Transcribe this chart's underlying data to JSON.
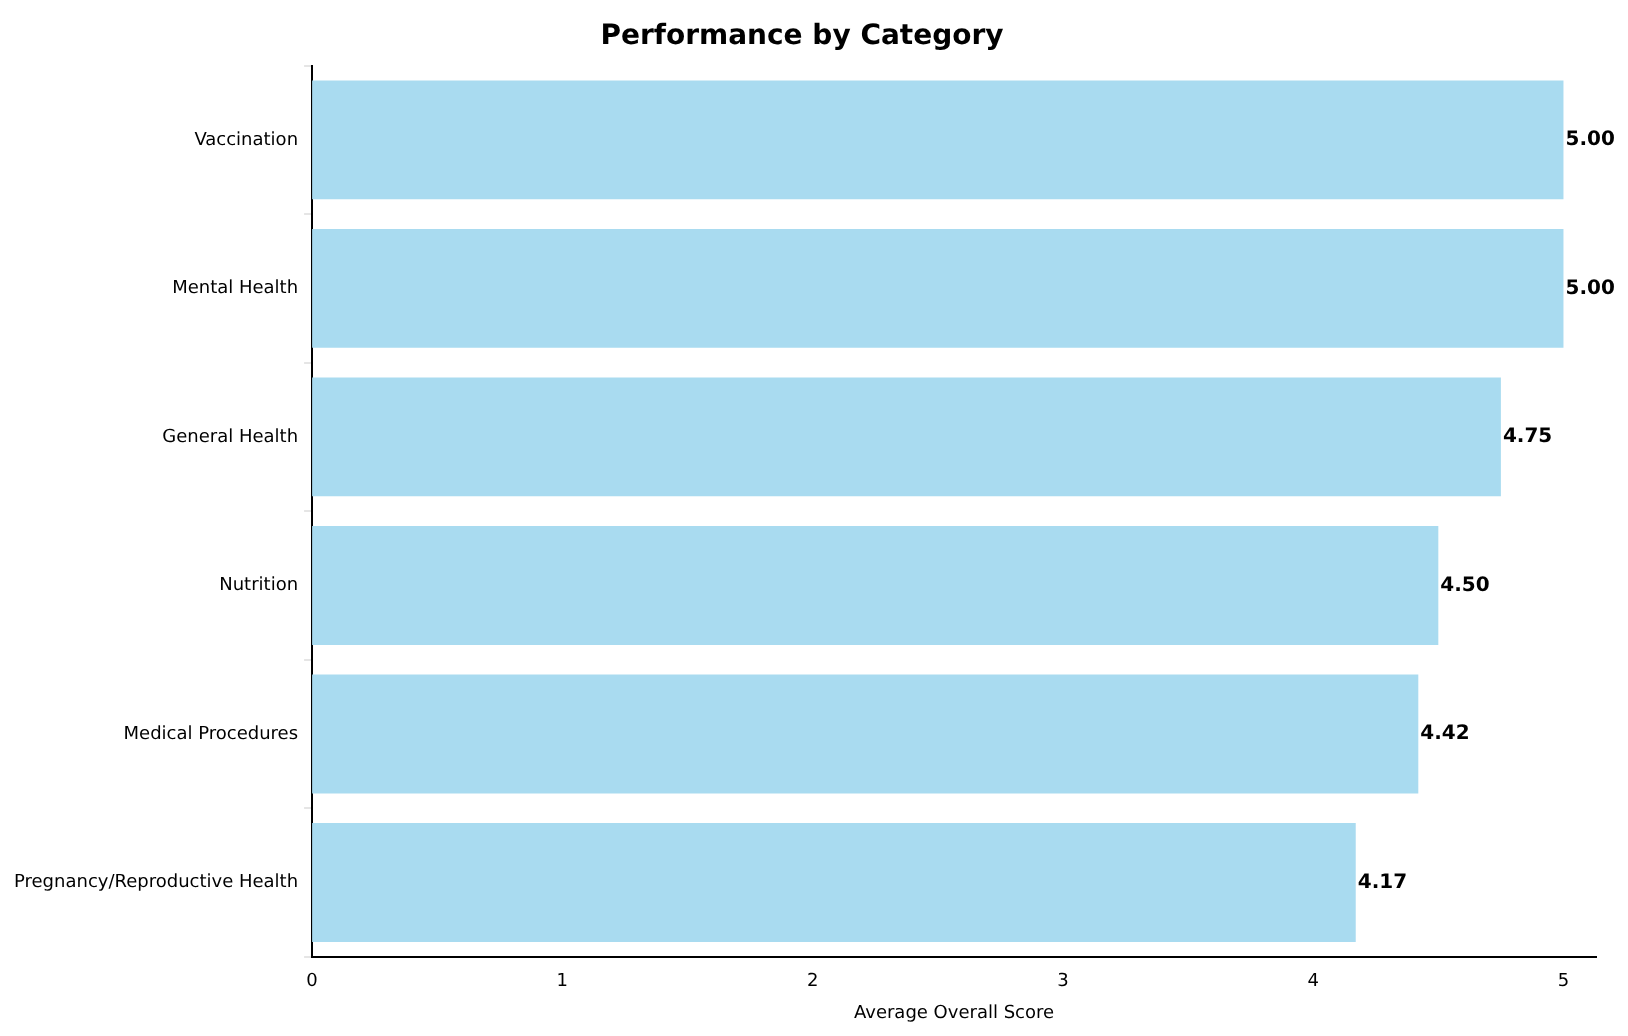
{
  "chart_data": {
    "type": "bar",
    "orientation": "horizontal",
    "title": "Performance by Category",
    "xlabel": "Average Overall Score",
    "categories": [
      "Vaccination",
      "Mental Health",
      "General Health",
      "Nutrition",
      "Medical Procedures",
      "Pregnancy/Reproductive Health"
    ],
    "values": [
      5.0,
      5.0,
      4.75,
      4.5,
      4.42,
      4.17
    ],
    "value_labels": [
      "5.00",
      "5.00",
      "4.75",
      "4.50",
      "4.42",
      "4.17"
    ],
    "color": "#a9dbf0",
    "xlim": [
      0,
      5.13
    ],
    "xticks": [
      0,
      1,
      2,
      3,
      4,
      5
    ],
    "grid": false,
    "legend": false
  }
}
